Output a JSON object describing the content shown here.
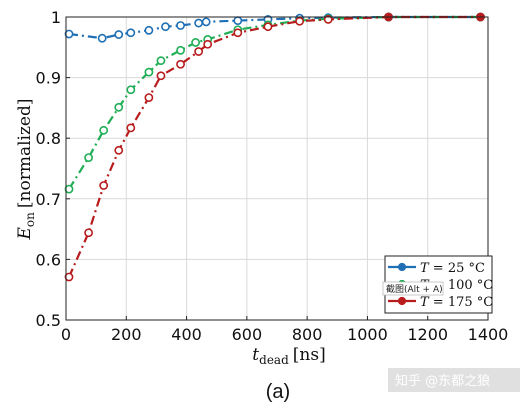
{
  "chart_data": {
    "type": "line",
    "title": "",
    "xlabel": "t_dead [ns]",
    "xlabel_main": "t",
    "xlabel_sub": "dead",
    "xlabel_unit": "[ns]",
    "ylabel": "E_on [normalized]",
    "ylabel_main": "E",
    "ylabel_sub": "on",
    "ylabel_unit": "[normalized]",
    "xlim": [
      0,
      1400
    ],
    "ylim": [
      0.5,
      1.0
    ],
    "xticks": [
      0,
      200,
      400,
      600,
      800,
      1000,
      1200,
      1400
    ],
    "yticks": [
      0.5,
      0.6,
      0.7,
      0.8,
      0.9,
      1.0
    ],
    "xtick_labels": [
      "0",
      "200",
      "400",
      "600",
      "800",
      "1000",
      "1200",
      "1400"
    ],
    "ytick_labels": [
      "0.5",
      "0.6",
      "0.7",
      "0.8",
      "0.9",
      "1"
    ],
    "grid": true,
    "legend_position": "bottom-right",
    "series": [
      {
        "name": "T = 25 °C",
        "label_var": "T",
        "label_rest": "= 25 °C",
        "color": "#1f6fb5",
        "x": [
          10,
          120,
          175,
          215,
          275,
          330,
          380,
          440,
          465,
          570,
          670,
          775,
          870,
          1070,
          1375
        ],
        "y": [
          0.972,
          0.965,
          0.971,
          0.974,
          0.978,
          0.984,
          0.986,
          0.99,
          0.992,
          0.994,
          0.996,
          0.998,
          0.999,
          1.0,
          1.0
        ]
      },
      {
        "name": "T = 100 °C",
        "label_var": "T",
        "label_rest": "= 100 °C",
        "color": "#1fae55",
        "x": [
          10,
          75,
          125,
          175,
          215,
          275,
          315,
          380,
          430,
          470,
          570,
          670,
          775,
          870,
          1070,
          1375
        ],
        "y": [
          0.716,
          0.768,
          0.813,
          0.851,
          0.88,
          0.909,
          0.928,
          0.945,
          0.958,
          0.963,
          0.979,
          0.987,
          0.994,
          0.997,
          1.0,
          1.0
        ]
      },
      {
        "name": "T = 175 °C",
        "label_var": "T",
        "label_rest": "= 175 °C",
        "color": "#b81c1c",
        "x": [
          10,
          75,
          125,
          175,
          215,
          275,
          315,
          380,
          440,
          470,
          570,
          670,
          775,
          870,
          1070,
          1375
        ],
        "y": [
          0.571,
          0.644,
          0.722,
          0.78,
          0.817,
          0.867,
          0.903,
          0.922,
          0.943,
          0.955,
          0.974,
          0.984,
          0.993,
          0.996,
          1.0,
          1.0
        ]
      }
    ]
  },
  "caption": "(a)",
  "tooltip": "截图(Alt + A)",
  "watermark": "知乎 @东都之狼"
}
